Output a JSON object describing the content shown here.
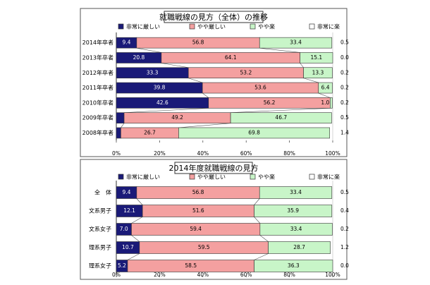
{
  "chart_data": [
    {
      "type": "bar",
      "stacked": true,
      "orientation": "horizontal",
      "title": "就職戦線の見方（全体）の推移",
      "categories": [
        "2014年卒者",
        "2013年卒者",
        "2012年卒者",
        "2011年卒者",
        "2010年卒者",
        "2009年卒者",
        "2008年卒者"
      ],
      "series": [
        {
          "name": "非常に厳しい",
          "values": [
            9.4,
            20.8,
            33.3,
            39.8,
            42.6,
            3.6,
            2.1
          ],
          "color": "#1a1a78"
        },
        {
          "name": "やや厳しい",
          "values": [
            56.8,
            64.1,
            53.2,
            53.6,
            56.2,
            49.2,
            26.7
          ],
          "color": "#f4a0a0"
        },
        {
          "name": "やや楽",
          "values": [
            33.4,
            15.1,
            13.3,
            6.4,
            1.0,
            46.7,
            69.8
          ],
          "color": "#c8f5c8"
        },
        {
          "name": "非常に楽",
          "values": [
            0.5,
            0.0,
            0.2,
            0.2,
            0.2,
            0.5,
            1.4
          ],
          "color": "#ffffff"
        }
      ],
      "xlim": [
        0,
        100
      ],
      "xticks": [
        "0%",
        "20%",
        "40%",
        "60%",
        "80%",
        "100%"
      ],
      "legend": "top"
    },
    {
      "type": "bar",
      "stacked": true,
      "orientation": "horizontal",
      "title": "2014年度就職戦線の見方",
      "categories": [
        "全　体",
        "文系男子",
        "文系女子",
        "理系男子",
        "理系女子"
      ],
      "series": [
        {
          "name": "非常に厳しい",
          "values": [
            9.4,
            12.1,
            7.0,
            10.7,
            5.2
          ],
          "color": "#1a1a78"
        },
        {
          "name": "やや厳しい",
          "values": [
            56.8,
            51.6,
            59.4,
            59.5,
            58.5
          ],
          "color": "#f4a0a0"
        },
        {
          "name": "やや楽",
          "values": [
            33.4,
            35.9,
            33.4,
            28.7,
            36.3
          ],
          "color": "#c8f5c8"
        },
        {
          "name": "非常に楽",
          "values": [
            0.5,
            0.4,
            0.2,
            1.2,
            0.0
          ],
          "color": "#ffffff"
        }
      ],
      "xlim": [
        0,
        100
      ],
      "xticks": [
        "0%",
        "20%",
        "40%",
        "60%",
        "80%",
        "100%"
      ],
      "legend": "top"
    }
  ]
}
